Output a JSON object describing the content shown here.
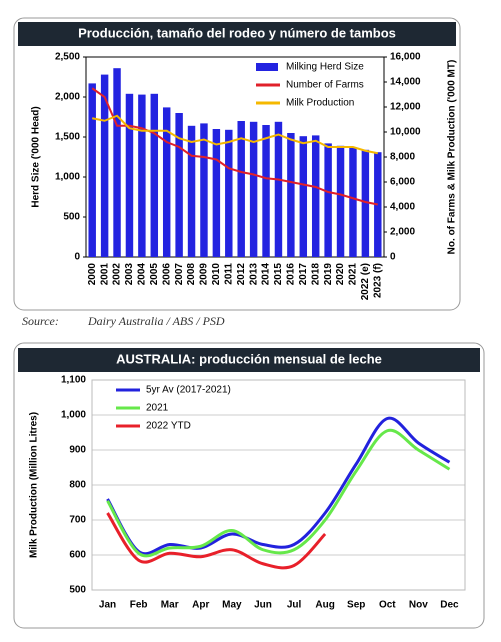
{
  "chart_data": [
    {
      "type": "bar",
      "title": "Producción, tamaño del rodeo y número de tambos",
      "categories": [
        "2000",
        "2001",
        "2002",
        "2003",
        "2004",
        "2005",
        "2006",
        "2007",
        "2008",
        "2009",
        "2010",
        "2011",
        "2012",
        "2013",
        "2014",
        "2015",
        "2016",
        "2017",
        "2018",
        "2019",
        "2020",
        "2021",
        "2022 (e)",
        "2023 (f)"
      ],
      "series": [
        {
          "name": "Milking Herd Size",
          "type": "bar",
          "color": "#2323e0",
          "values": [
            2170,
            2280,
            2360,
            2040,
            2030,
            2040,
            1870,
            1800,
            1640,
            1670,
            1600,
            1590,
            1700,
            1690,
            1650,
            1690,
            1550,
            1510,
            1520,
            1420,
            1390,
            1370,
            1340,
            1310
          ]
        },
        {
          "name": "Number of Farms",
          "type": "line",
          "axis": "y2",
          "color": "#e0202a",
          "values": [
            13500,
            12800,
            10500,
            10500,
            10300,
            9900,
            9200,
            8800,
            8100,
            8000,
            7800,
            7100,
            6800,
            6600,
            6300,
            6200,
            6000,
            5800,
            5600,
            5200,
            5000,
            4700,
            4400,
            4200
          ]
        },
        {
          "name": "Milk Production",
          "type": "line",
          "axis": "y2",
          "color": "#f5b800",
          "values": [
            11100,
            10900,
            11300,
            10300,
            10100,
            10100,
            10100,
            9500,
            9200,
            9400,
            9000,
            9200,
            9500,
            9200,
            9500,
            9800,
            9400,
            9100,
            9300,
            8800,
            8800,
            8800,
            8500,
            8300
          ]
        }
      ],
      "ylabel": "Herd Size ('000 Head)",
      "y2label": "No. of Farms & Milk Production ('000 MT)",
      "ylim": [
        0,
        2500
      ],
      "yticks": [
        0,
        500,
        {
          "value": 1000,
          "label": "1,000"
        },
        {
          "value": 1500,
          "label": "1,500"
        },
        {
          "value": 2000,
          "label": "2,000"
        },
        {
          "value": 2500,
          "label": "2,500"
        }
      ],
      "y2lim": [
        0,
        16000
      ],
      "y2ticks": [
        0,
        {
          "value": 2000,
          "label": "2,000"
        },
        {
          "value": 4000,
          "label": "4,000"
        },
        {
          "value": 6000,
          "label": "6,000"
        },
        {
          "value": 8000,
          "label": "8,000"
        },
        {
          "value": 10000,
          "label": "10,000"
        },
        {
          "value": 12000,
          "label": "12,000"
        },
        {
          "value": 14000,
          "label": "14,000"
        },
        {
          "value": 16000,
          "label": "16,000"
        }
      ],
      "legend": "upper right",
      "source_label": "Source:",
      "source": "Dairy Australia / ABS / PSD"
    },
    {
      "type": "line",
      "title": "AUSTRALIA: producción mensual de leche",
      "categories": [
        "Jan",
        "Feb",
        "Mar",
        "Apr",
        "May",
        "Jun",
        "Jul",
        "Aug",
        "Sep",
        "Oct",
        "Nov",
        "Dec"
      ],
      "series": [
        {
          "name": "5yr Av (2017-2021)",
          "color": "#2222dd",
          "values": [
            760,
            610,
            630,
            620,
            660,
            630,
            630,
            720,
            860,
            990,
            920,
            865
          ]
        },
        {
          "name": "2021",
          "color": "#66e84a",
          "values": [
            755,
            605,
            620,
            625,
            670,
            615,
            615,
            700,
            840,
            955,
            900,
            845
          ]
        },
        {
          "name": "2022 YTD",
          "color": "#e8202a",
          "values": [
            720,
            585,
            605,
            595,
            615,
            575,
            570,
            660,
            null,
            null,
            null,
            null
          ]
        }
      ],
      "ylabel": "Milk Production (Million Litres)",
      "ylim": [
        500,
        1100
      ],
      "yticks": [
        500,
        600,
        700,
        800,
        900,
        {
          "value": 1000,
          "label": "1,000"
        },
        {
          "value": 1100,
          "label": "1,100"
        }
      ],
      "grid": true,
      "smooth": true,
      "legend": "upper left"
    }
  ]
}
